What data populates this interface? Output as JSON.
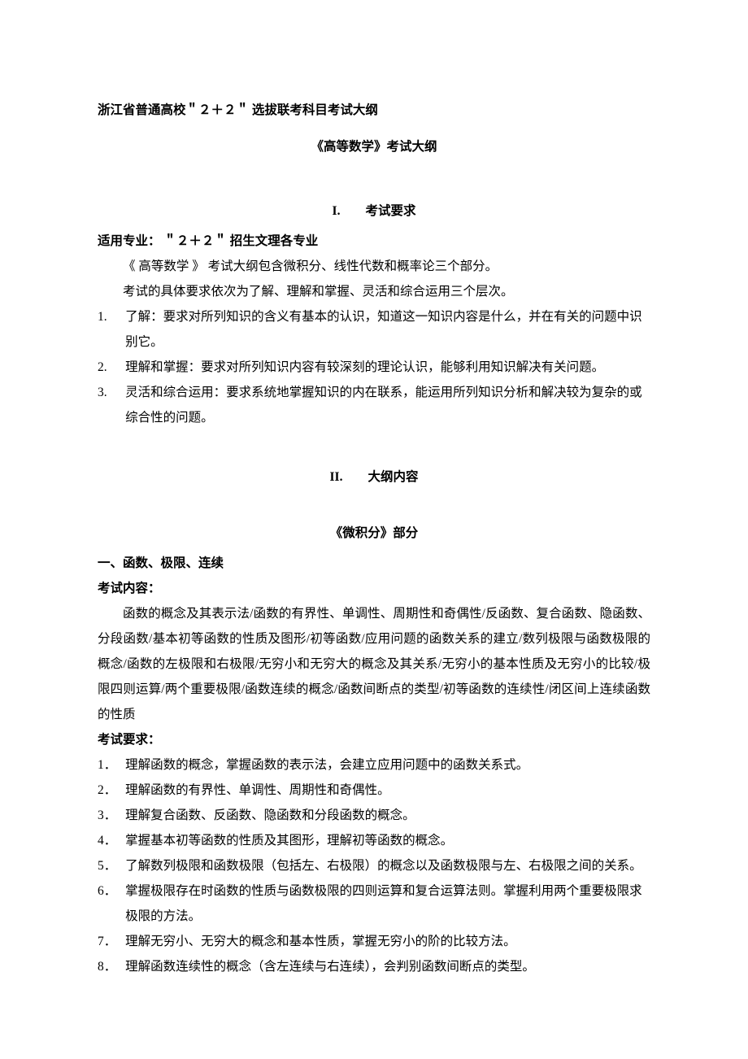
{
  "doc_title_line": "浙江省普通高校＂２＋２＂ 选拔联考科目考试大纲",
  "subject_title": "《高等数学》考试大纲",
  "section1": {
    "roman": "I.",
    "label": "考试要求"
  },
  "applicable": "适用专业： ＂２＋２＂ 招生文理各专业",
  "intro1": "《 高等数学 》 考试大纲包含微积分、线性代数和概率论三个部分。",
  "intro2": "考试的具体要求依次为了解、理解和掌握、灵活和综合运用三个层次。",
  "levels": [
    {
      "num": "1.",
      "text": "了解：要求对所列知识的含义有基本的认识，知道这一知识内容是什么，并在有关的问题中识别它。"
    },
    {
      "num": "2.",
      "text": "理解和掌握：要求对所列知识内容有较深刻的理论认识，能够利用知识解决有关问题。"
    },
    {
      "num": "3.",
      "text": "灵活和综合运用：要求系统地掌握知识的内在联系，能运用所列知识分析和解决较为复杂的或综合性的问题。"
    }
  ],
  "section2": {
    "roman": "II.",
    "label": "大纲内容"
  },
  "part_title": "《微积分》部分",
  "topic_heading": "一、函数、极限、连续",
  "content_label": "考试内容：",
  "content_body": "函数的概念及其表示法/函数的有界性、单调性、周期性和奇偶性/反函数、复合函数、隐函数、分段函数/基本初等函数的性质及图形/初等函数/应用问题的函数关系的建立/数列极限与函数极限的概念/函数的左极限和右极限/无穷小和无穷大的概念及其关系/无穷小的基本性质及无穷小的比较/极限四则运算/两个重要极限/函数连续的概念/函数间断点的类型/初等函数的连续性/闭区间上连续函数的性质",
  "req_label": "考试要求：",
  "reqs": [
    {
      "num": "1．",
      "text": "理解函数的概念，掌握函数的表示法，会建立应用问题中的函数关系式。"
    },
    {
      "num": "2．",
      "text": "理解函数的有界性、单调性、周期性和奇偶性。"
    },
    {
      "num": "3．",
      "text": "理解复合函数、反函数、隐函数和分段函数的概念。"
    },
    {
      "num": "4．",
      "text": "掌握基本初等函数的性质及其图形，理解初等函数的概念。"
    },
    {
      "num": "5．",
      "text": "了解数列极限和函数极限（包括左、右极限）的概念以及函数极限与左、右极限之间的关系。"
    },
    {
      "num": "6．",
      "text": "掌握极限存在时函数的性质与函数极限的四则运算和复合运算法则。掌握利用两个重要极限求极限的方法。"
    },
    {
      "num": "7．",
      "text": "理解无穷小、无穷大的概念和基本性质，掌握无穷小的阶的比较方法。"
    },
    {
      "num": "8．",
      "text": "理解函数连续性的概念（含左连续与右连续），会判别函数间断点的类型。"
    }
  ]
}
